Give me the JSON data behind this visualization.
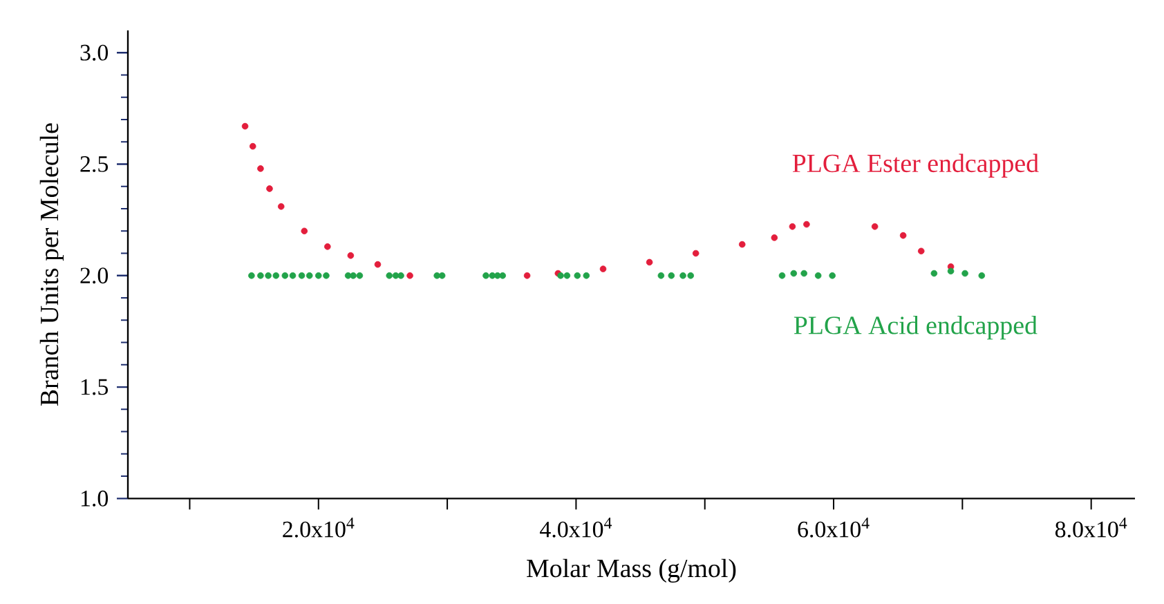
{
  "chart_data": {
    "type": "scatter",
    "xlabel": "Molar Mass (g/mol)",
    "ylabel": "Branch Units per Molecule",
    "xlim": [
      5200,
      83400
    ],
    "ylim": [
      1.0,
      3.1
    ],
    "xticks": [
      {
        "value": 10000,
        "label": null
      },
      {
        "value": 20000,
        "label": "2.0x10$^{4}$"
      },
      {
        "value": 30000,
        "label": null
      },
      {
        "value": 40000,
        "label": "4.0x10$^{4}$"
      },
      {
        "value": 50000,
        "label": null
      },
      {
        "value": 60000,
        "label": "6.0x10$^{4}$"
      },
      {
        "value": 70000,
        "label": null
      },
      {
        "value": 80000,
        "label": "8.0x10$^{4}$"
      }
    ],
    "yticks": [
      {
        "value": 1.0,
        "label": "1.0"
      },
      {
        "value": 1.1,
        "label": null
      },
      {
        "value": 1.2,
        "label": null
      },
      {
        "value": 1.3,
        "label": null
      },
      {
        "value": 1.4,
        "label": null
      },
      {
        "value": 1.5,
        "label": "1.5"
      },
      {
        "value": 1.6,
        "label": null
      },
      {
        "value": 1.7,
        "label": null
      },
      {
        "value": 1.8,
        "label": null
      },
      {
        "value": 1.9,
        "label": null
      },
      {
        "value": 2.0,
        "label": "2.0"
      },
      {
        "value": 2.1,
        "label": null
      },
      {
        "value": 2.2,
        "label": null
      },
      {
        "value": 2.3,
        "label": null
      },
      {
        "value": 2.4,
        "label": null
      },
      {
        "value": 2.5,
        "label": "2.5"
      },
      {
        "value": 2.6,
        "label": null
      },
      {
        "value": 2.7,
        "label": null
      },
      {
        "value": 2.8,
        "label": null
      },
      {
        "value": 2.9,
        "label": null
      },
      {
        "value": 3.0,
        "label": "3.0"
      }
    ],
    "marker": "circle",
    "grid": false,
    "legend": false,
    "series": [
      {
        "name": "PLGA Ester endcapped",
        "color": "#e31e3c",
        "x": [
          14300,
          14900,
          15500,
          16200,
          17100,
          18900,
          20700,
          22500,
          24600,
          27100,
          36200,
          38600,
          42100,
          45700,
          49300,
          52900,
          55400,
          56800,
          57900,
          63200,
          65400,
          66800,
          69100
        ],
        "values": [
          2.67,
          2.58,
          2.48,
          2.39,
          2.31,
          2.2,
          2.13,
          2.09,
          2.05,
          2.0,
          2.0,
          2.01,
          2.03,
          2.06,
          2.1,
          2.14,
          2.17,
          2.22,
          2.23,
          2.22,
          2.18,
          2.11,
          2.04
        ]
      },
      {
        "name": "PLGA Acid endcapped",
        "color": "#22a34a",
        "x": [
          14800,
          15500,
          16100,
          16700,
          17400,
          18000,
          18700,
          19300,
          20000,
          20600,
          22300,
          22700,
          23200,
          25500,
          26000,
          26400,
          29200,
          29600,
          33000,
          33500,
          33900,
          34300,
          38800,
          39300,
          40100,
          40800,
          46600,
          47400,
          48300,
          48900,
          56000,
          56900,
          57700,
          58800,
          59900,
          67800,
          69100,
          70200,
          71500
        ],
        "values": [
          2.0,
          2.0,
          2.0,
          2.0,
          2.0,
          2.0,
          2.0,
          2.0,
          2.0,
          2.0,
          2.0,
          2.0,
          2.0,
          2.0,
          2.0,
          2.0,
          2.0,
          2.0,
          2.0,
          2.0,
          2.0,
          2.0,
          2.0,
          2.0,
          2.0,
          2.0,
          2.0,
          2.0,
          2.0,
          2.0,
          2.0,
          2.01,
          2.01,
          2.0,
          2.0,
          2.01,
          2.02,
          2.01,
          2.0
        ]
      }
    ]
  }
}
